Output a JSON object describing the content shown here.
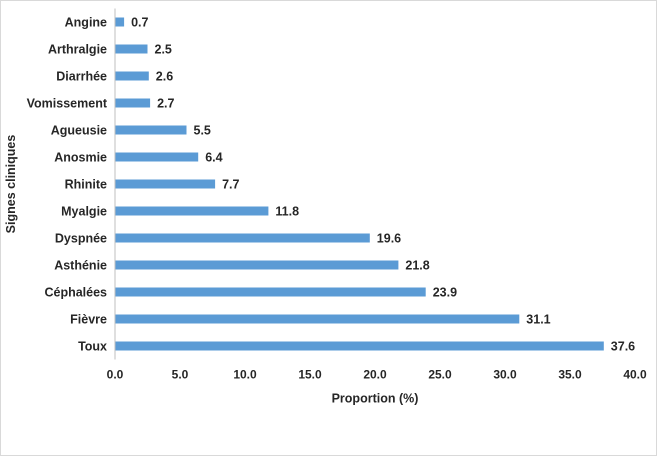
{
  "chart_data": {
    "type": "bar",
    "orientation": "horizontal",
    "title": "",
    "xlabel": "Proportion (%)",
    "ylabel": "Signes cliniques",
    "xlim": [
      0,
      40
    ],
    "x_ticks": [
      "0.0",
      "5.0",
      "10.0",
      "15.0",
      "20.0",
      "25.0",
      "30.0",
      "35.0",
      "40.0"
    ],
    "grid": false,
    "legend": "none",
    "bar_color": "#5b9bd5",
    "categories": [
      "Angine",
      "Arthralgie",
      "Diarrhée",
      "Vomissement",
      "Agueusie",
      "Anosmie",
      "Rhinite",
      "Myalgie",
      "Dyspnée",
      "Asthénie",
      "Céphalées",
      "Fièvre",
      "Toux"
    ],
    "values": [
      0.7,
      2.5,
      2.6,
      2.7,
      5.5,
      6.4,
      7.7,
      11.8,
      19.6,
      21.8,
      23.9,
      31.1,
      37.6
    ],
    "value_labels": [
      "0.7",
      "2.5",
      "2.6",
      "2.7",
      "5.5",
      "6.4",
      "7.7",
      "11.8",
      "19.6",
      "21.8",
      "23.9",
      "31.1",
      "37.6"
    ]
  }
}
